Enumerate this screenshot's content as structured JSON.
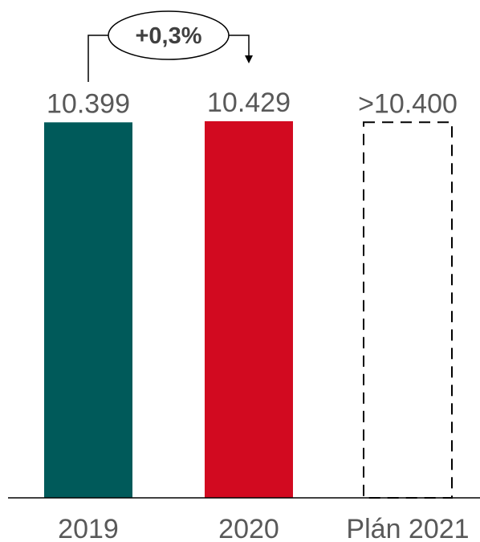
{
  "chart_data": {
    "type": "bar",
    "categories": [
      "2019",
      "2020",
      "Plán 2021"
    ],
    "values": [
      10399,
      10429,
      10400
    ],
    "value_labels": [
      "10.399",
      "10.429",
      ">10.400"
    ],
    "ylim": [
      0,
      10429
    ],
    "bar_colors": [
      "#005a5a",
      "#d20a20",
      "#ffffff"
    ],
    "bar_styles": [
      "solid",
      "solid",
      "dashed"
    ],
    "annotation": {
      "text": "+0,3%",
      "from_category": "2019",
      "to_category": "2020"
    },
    "grid": false,
    "title": "",
    "xlabel": "",
    "ylabel": ""
  }
}
